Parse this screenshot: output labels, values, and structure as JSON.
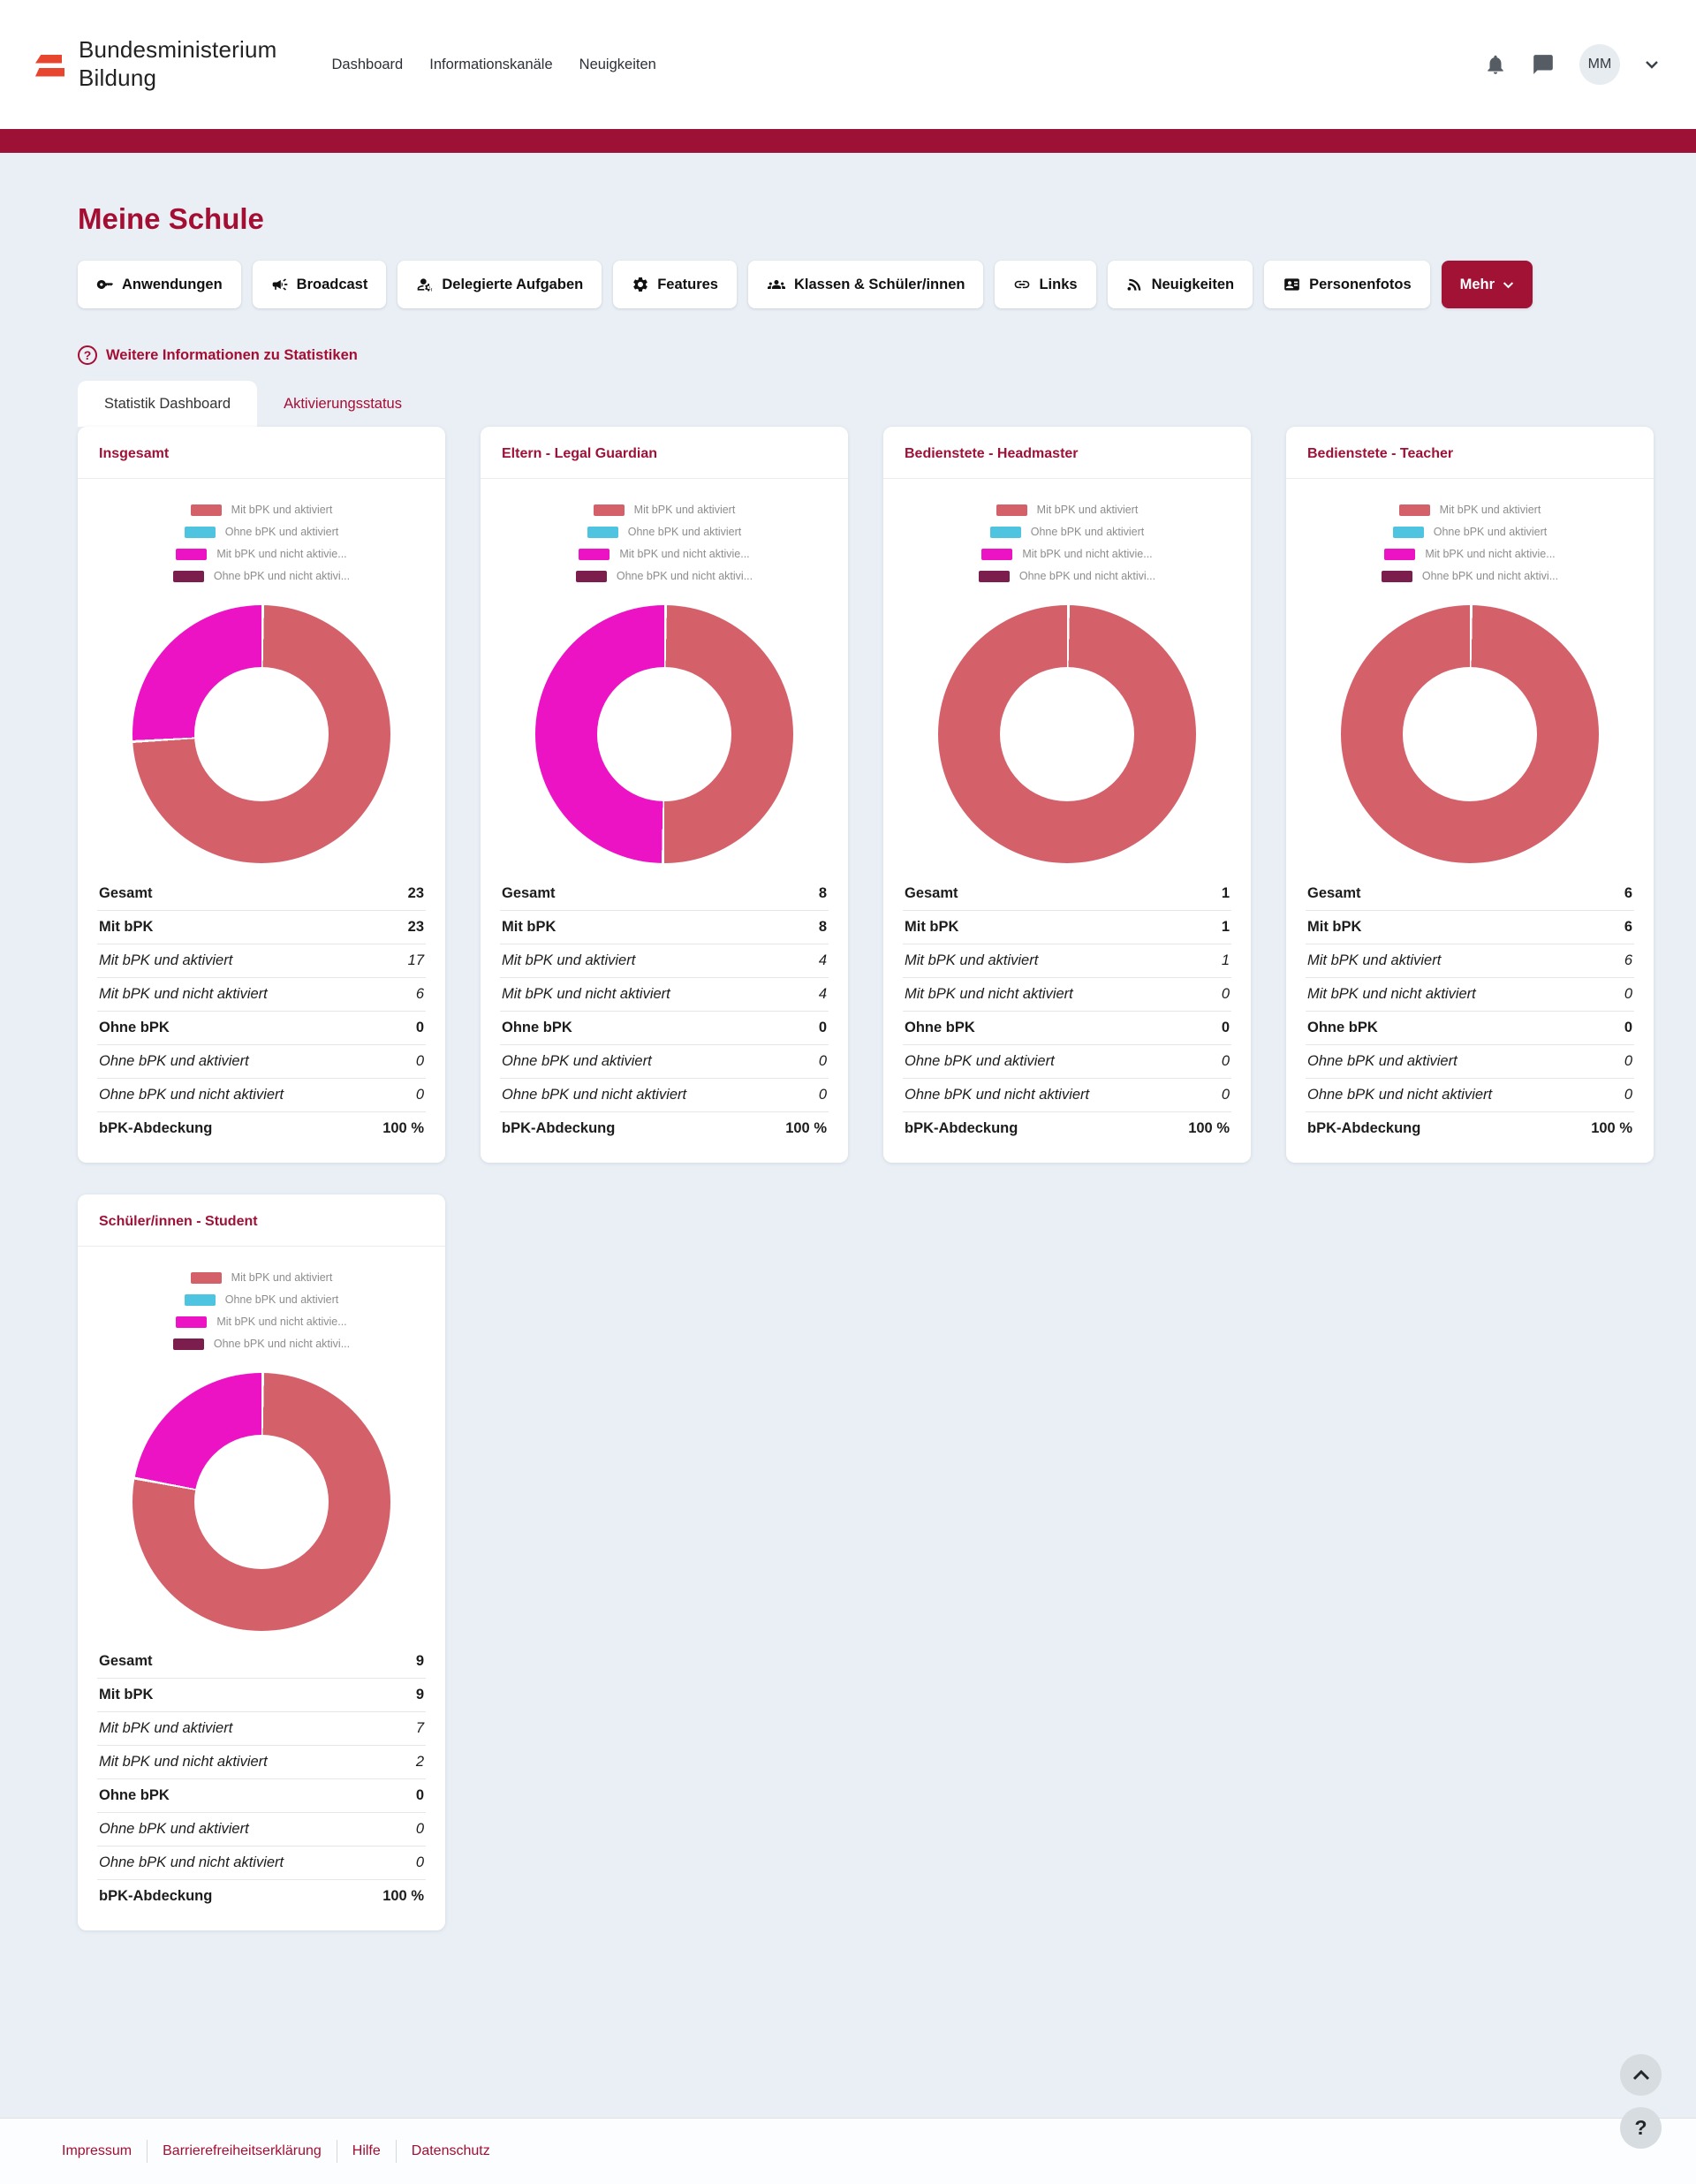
{
  "colors": {
    "accent": "#a50e33",
    "top_bar": "#9e1136",
    "primary_button": "#a11235",
    "flag_red": "#e8452e",
    "series_mit_aktiviert": "#d4606a",
    "series_ohne_aktiviert": "#4fc4e0",
    "series_mit_nicht_aktiviert": "#ec13c5",
    "series_ohne_nicht_aktiviert": "#7b1d4d"
  },
  "header": {
    "brand_line1": "Bundesministerium",
    "brand_line2": "Bildung",
    "nav": [
      {
        "label": "Dashboard"
      },
      {
        "label": "Informationskanäle"
      },
      {
        "label": "Neuigkeiten"
      }
    ],
    "user_initials": "MM"
  },
  "page": {
    "title": "Meine Schule",
    "action_buttons": [
      {
        "label": "Anwendungen",
        "icon": "key-icon"
      },
      {
        "label": "Broadcast",
        "icon": "megaphone-icon"
      },
      {
        "label": "Delegierte Aufgaben",
        "icon": "user-gear-icon"
      },
      {
        "label": "Features",
        "icon": "gears-icon"
      },
      {
        "label": "Klassen & Schüler/innen",
        "icon": "users-icon"
      },
      {
        "label": "Links",
        "icon": "link-icon"
      },
      {
        "label": "Neuigkeiten",
        "icon": "rss-icon"
      },
      {
        "label": "Personenfotos",
        "icon": "id-card-icon"
      },
      {
        "label": "Mehr",
        "icon": "chevron-down-icon"
      }
    ],
    "info_link": "Weitere Informationen zu Statistiken",
    "info_icon": "?",
    "tabs": [
      {
        "label": "Statistik Dashboard",
        "active": true
      },
      {
        "label": "Aktivierungsstatus",
        "active": false
      }
    ]
  },
  "legend": [
    {
      "label": "Mit bPK und aktiviert",
      "color": "#d4606a"
    },
    {
      "label": "Ohne bPK und aktiviert",
      "color": "#4fc4e0"
    },
    {
      "label": "Mit bPK und nicht aktivie...",
      "color": "#ec13c5"
    },
    {
      "label": "Ohne bPK und nicht aktivi...",
      "color": "#7b1d4d"
    }
  ],
  "chart_data": [
    {
      "type": "pie",
      "title": "Insgesamt",
      "legend_position": "top",
      "segments": [
        {
          "label": "Mit bPK und aktiviert",
          "value": 17
        },
        {
          "label": "Ohne bPK und aktiviert",
          "value": 0
        },
        {
          "label": "Mit bPK und nicht aktiviert",
          "value": 6
        },
        {
          "label": "Ohne bPK und nicht aktiviert",
          "value": 0
        }
      ],
      "table": [
        {
          "label": "Gesamt",
          "value": "23",
          "style": "bold"
        },
        {
          "label": "Mit bPK",
          "value": "23",
          "style": "bold"
        },
        {
          "label": "Mit bPK und aktiviert",
          "value": "17",
          "style": "italic"
        },
        {
          "label": "Mit bPK und nicht aktiviert",
          "value": "6",
          "style": "italic"
        },
        {
          "label": "Ohne bPK",
          "value": "0",
          "style": "bold"
        },
        {
          "label": "Ohne bPK und aktiviert",
          "value": "0",
          "style": "italic"
        },
        {
          "label": "Ohne bPK und nicht aktiviert",
          "value": "0",
          "style": "italic"
        },
        {
          "label": "bPK-Abdeckung",
          "value": "100 %",
          "style": "bold"
        }
      ]
    },
    {
      "type": "pie",
      "title": "Eltern - Legal Guardian",
      "legend_position": "top",
      "segments": [
        {
          "label": "Mit bPK und aktiviert",
          "value": 4
        },
        {
          "label": "Ohne bPK und aktiviert",
          "value": 0
        },
        {
          "label": "Mit bPK und nicht aktiviert",
          "value": 4
        },
        {
          "label": "Ohne bPK und nicht aktiviert",
          "value": 0
        }
      ],
      "table": [
        {
          "label": "Gesamt",
          "value": "8",
          "style": "bold"
        },
        {
          "label": "Mit bPK",
          "value": "8",
          "style": "bold"
        },
        {
          "label": "Mit bPK und aktiviert",
          "value": "4",
          "style": "italic"
        },
        {
          "label": "Mit bPK und nicht aktiviert",
          "value": "4",
          "style": "italic"
        },
        {
          "label": "Ohne bPK",
          "value": "0",
          "style": "bold"
        },
        {
          "label": "Ohne bPK und aktiviert",
          "value": "0",
          "style": "italic"
        },
        {
          "label": "Ohne bPK und nicht aktiviert",
          "value": "0",
          "style": "italic"
        },
        {
          "label": "bPK-Abdeckung",
          "value": "100 %",
          "style": "bold"
        }
      ]
    },
    {
      "type": "pie",
      "title": "Bedienstete - Headmaster",
      "legend_position": "top",
      "segments": [
        {
          "label": "Mit bPK und aktiviert",
          "value": 1
        },
        {
          "label": "Ohne bPK und aktiviert",
          "value": 0
        },
        {
          "label": "Mit bPK und nicht aktiviert",
          "value": 0
        },
        {
          "label": "Ohne bPK und nicht aktiviert",
          "value": 0
        }
      ],
      "table": [
        {
          "label": "Gesamt",
          "value": "1",
          "style": "bold"
        },
        {
          "label": "Mit bPK",
          "value": "1",
          "style": "bold"
        },
        {
          "label": "Mit bPK und aktiviert",
          "value": "1",
          "style": "italic"
        },
        {
          "label": "Mit bPK und nicht aktiviert",
          "value": "0",
          "style": "italic"
        },
        {
          "label": "Ohne bPK",
          "value": "0",
          "style": "bold"
        },
        {
          "label": "Ohne bPK und aktiviert",
          "value": "0",
          "style": "italic"
        },
        {
          "label": "Ohne bPK und nicht aktiviert",
          "value": "0",
          "style": "italic"
        },
        {
          "label": "bPK-Abdeckung",
          "value": "100 %",
          "style": "bold"
        }
      ]
    },
    {
      "type": "pie",
      "title": "Bedienstete - Teacher",
      "legend_position": "top",
      "segments": [
        {
          "label": "Mit bPK und aktiviert",
          "value": 6
        },
        {
          "label": "Ohne bPK und aktiviert",
          "value": 0
        },
        {
          "label": "Mit bPK und nicht aktiviert",
          "value": 0
        },
        {
          "label": "Ohne bPK und nicht aktiviert",
          "value": 0
        }
      ],
      "table": [
        {
          "label": "Gesamt",
          "value": "6",
          "style": "bold"
        },
        {
          "label": "Mit bPK",
          "value": "6",
          "style": "bold"
        },
        {
          "label": "Mit bPK und aktiviert",
          "value": "6",
          "style": "italic"
        },
        {
          "label": "Mit bPK und nicht aktiviert",
          "value": "0",
          "style": "italic"
        },
        {
          "label": "Ohne bPK",
          "value": "0",
          "style": "bold"
        },
        {
          "label": "Ohne bPK und aktiviert",
          "value": "0",
          "style": "italic"
        },
        {
          "label": "Ohne bPK und nicht aktiviert",
          "value": "0",
          "style": "italic"
        },
        {
          "label": "bPK-Abdeckung",
          "value": "100 %",
          "style": "bold"
        }
      ]
    },
    {
      "type": "pie",
      "title": "Schüler/innen - Student",
      "legend_position": "top",
      "segments": [
        {
          "label": "Mit bPK und aktiviert",
          "value": 7
        },
        {
          "label": "Ohne bPK und aktiviert",
          "value": 0
        },
        {
          "label": "Mit bPK und nicht aktiviert",
          "value": 2
        },
        {
          "label": "Ohne bPK und nicht aktiviert",
          "value": 0
        }
      ],
      "table": [
        {
          "label": "Gesamt",
          "value": "9",
          "style": "bold"
        },
        {
          "label": "Mit bPK",
          "value": "9",
          "style": "bold"
        },
        {
          "label": "Mit bPK und aktiviert",
          "value": "7",
          "style": "italic"
        },
        {
          "label": "Mit bPK und nicht aktiviert",
          "value": "2",
          "style": "italic"
        },
        {
          "label": "Ohne bPK",
          "value": "0",
          "style": "bold"
        },
        {
          "label": "Ohne bPK und aktiviert",
          "value": "0",
          "style": "italic"
        },
        {
          "label": "Ohne bPK und nicht aktiviert",
          "value": "0",
          "style": "italic"
        },
        {
          "label": "bPK-Abdeckung",
          "value": "100 %",
          "style": "bold"
        }
      ]
    }
  ],
  "footer": {
    "links": [
      {
        "label": "Impressum"
      },
      {
        "label": "Barrierefreiheitserklärung"
      },
      {
        "label": "Hilfe"
      },
      {
        "label": "Datenschutz"
      }
    ]
  },
  "floating": {
    "help_label": "?"
  }
}
